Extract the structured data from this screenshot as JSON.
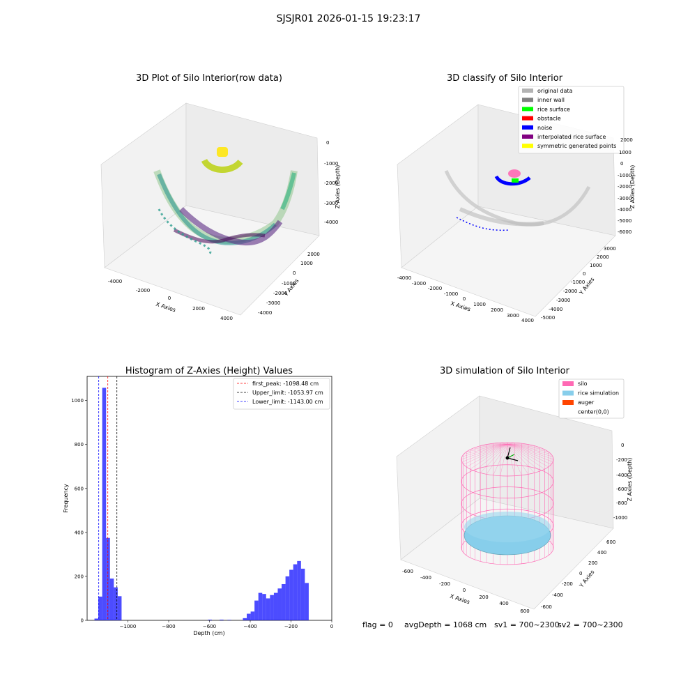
{
  "figure": {
    "suptitle": "SJSJR01 2026-01-15 19:23:17",
    "status": {
      "flag": "flag = 0",
      "avg_depth": "avgDepth = 1068 cm",
      "sv1": "sv1 = 700~2300",
      "sv2": "sv2 = 700~2300"
    }
  },
  "panels": {
    "raw3d": {
      "title": "3D Plot of Silo Interior(row data)",
      "xlabel": "X Axies",
      "ylabel": "Y Axies",
      "zlabel": "Z Axies (Depth)",
      "xticks": [
        "-4000",
        "-2000",
        "0",
        "2000",
        "4000"
      ],
      "yticks": [
        "-4000",
        "-3000",
        "-2000",
        "-1000",
        "0",
        "1000",
        "2000"
      ],
      "zticks": [
        "0",
        "-1000",
        "-2000",
        "-3000",
        "-4000"
      ]
    },
    "classify3d": {
      "title": "3D classify of Silo Interior",
      "xlabel": "X Axies",
      "ylabel": "Y Axies",
      "zlabel": "Z Axies (Depth)",
      "xticks": [
        "-4000",
        "-3000",
        "-2000",
        "-1000",
        "0",
        "1000",
        "2000",
        "3000",
        "4000"
      ],
      "yticks": [
        "-5000",
        "-4000",
        "-3000",
        "-2000",
        "-1000",
        "0",
        "1000",
        "2000",
        "3000"
      ],
      "zticks": [
        "2000",
        "1000",
        "0",
        "-1000",
        "-2000",
        "-3000",
        "-4000",
        "-5000",
        "-6000"
      ],
      "legend": [
        {
          "label": "original data",
          "color": "#b3b3b3"
        },
        {
          "label": "inner wall",
          "color": "#808080"
        },
        {
          "label": "rice surface",
          "color": "#00ff00"
        },
        {
          "label": "obstacle",
          "color": "#ff0000"
        },
        {
          "label": "noise",
          "color": "#0000ff"
        },
        {
          "label": "interpolated rice surface",
          "color": "#800080"
        },
        {
          "label": "symmetric generated points",
          "color": "#ffff00"
        }
      ]
    },
    "simulation3d": {
      "title": "3D simulation of Silo Interior",
      "xlabel": "X Axies",
      "ylabel": "Y Axies",
      "zlabel": "Z Axies (Depth)",
      "xticks": [
        "-600",
        "-400",
        "-200",
        "0",
        "200",
        "400",
        "600"
      ],
      "yticks": [
        "-600",
        "-400",
        "-200",
        "0",
        "200",
        "400",
        "600"
      ],
      "zticks": [
        "0",
        "-200",
        "-400",
        "-600",
        "-800",
        "-1000"
      ],
      "legend": [
        {
          "label": "silo",
          "color": "#ff69b4"
        },
        {
          "label": "rice simulation",
          "color": "#87ceeb"
        },
        {
          "label": "auger",
          "color": "#ff4500"
        },
        {
          "label": "center(0,0)",
          "color": ""
        }
      ]
    }
  },
  "chart_data": [
    {
      "type": "bar",
      "title": "Histogram of Z-Axies (Height) Values",
      "xlabel": "Depth (cm)",
      "ylabel": "Frequency",
      "xlim": [
        -1200,
        0
      ],
      "ylim": [
        0,
        1110
      ],
      "xticks": [
        -1000,
        -800,
        -600,
        -400,
        -200,
        0
      ],
      "xtick_labels": [
        "−1000",
        "−800",
        "−600",
        "−400",
        "−200",
        "0"
      ],
      "yticks": [
        0,
        200,
        400,
        600,
        800,
        1000
      ],
      "bar_color": "#0000ff",
      "bar_alpha": 0.7,
      "bins": [
        {
          "x0": -1164,
          "x1": -1145,
          "value": 8
        },
        {
          "x0": -1145,
          "x1": -1126,
          "value": 108
        },
        {
          "x0": -1126,
          "x1": -1107,
          "value": 1058
        },
        {
          "x0": -1107,
          "x1": -1088,
          "value": 375
        },
        {
          "x0": -1088,
          "x1": -1069,
          "value": 190
        },
        {
          "x0": -1069,
          "x1": -1050,
          "value": 150
        },
        {
          "x0": -1050,
          "x1": -1031,
          "value": 110
        },
        {
          "x0": -607,
          "x1": -588,
          "value": 3
        },
        {
          "x0": -550,
          "x1": -531,
          "value": 3
        },
        {
          "x0": -512,
          "x1": -493,
          "value": 2
        },
        {
          "x0": -436,
          "x1": -417,
          "value": 10
        },
        {
          "x0": -417,
          "x1": -398,
          "value": 30
        },
        {
          "x0": -398,
          "x1": -379,
          "value": 40
        },
        {
          "x0": -379,
          "x1": -360,
          "value": 90
        },
        {
          "x0": -360,
          "x1": -341,
          "value": 125
        },
        {
          "x0": -341,
          "x1": -322,
          "value": 120
        },
        {
          "x0": -322,
          "x1": -303,
          "value": 100
        },
        {
          "x0": -303,
          "x1": -284,
          "value": 115
        },
        {
          "x0": -284,
          "x1": -265,
          "value": 125
        },
        {
          "x0": -265,
          "x1": -246,
          "value": 145
        },
        {
          "x0": -246,
          "x1": -227,
          "value": 165
        },
        {
          "x0": -227,
          "x1": -208,
          "value": 200
        },
        {
          "x0": -208,
          "x1": -189,
          "value": 230
        },
        {
          "x0": -189,
          "x1": -170,
          "value": 255
        },
        {
          "x0": -170,
          "x1": -151,
          "value": 270
        },
        {
          "x0": -151,
          "x1": -132,
          "value": 235
        },
        {
          "x0": -132,
          "x1": -113,
          "value": 170
        }
      ],
      "vlines": [
        {
          "name": "first_peak: -1098.48 cm",
          "x": -1098.48,
          "color": "#ff0000"
        },
        {
          "name": "Upper_limit: -1053.97 cm",
          "x": -1053.97,
          "color": "#000000"
        },
        {
          "name": "Lower_limit: -1143.00 cm",
          "x": -1143.0,
          "color": "#0000ff"
        }
      ],
      "legend_loc": "upper right"
    }
  ]
}
